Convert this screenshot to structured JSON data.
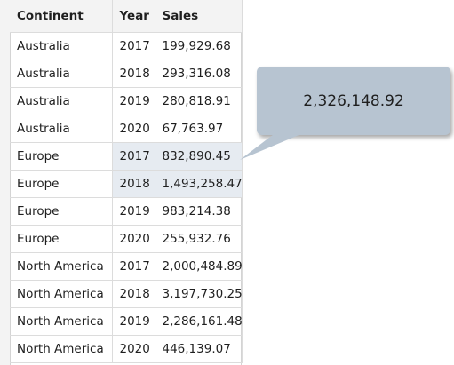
{
  "table": {
    "headers": [
      "Continent",
      "Year",
      "Sales"
    ],
    "rows": [
      [
        "Australia",
        "2017",
        "199,929.68"
      ],
      [
        "Australia",
        "2018",
        "293,316.08"
      ],
      [
        "Australia",
        "2019",
        "280,818.91"
      ],
      [
        "Australia",
        "2020",
        "67,763.97"
      ],
      [
        "Europe",
        "2017",
        "832,890.45"
      ],
      [
        "Europe",
        "2018",
        "1,493,258.47"
      ],
      [
        "Europe",
        "2019",
        "983,214.38"
      ],
      [
        "Europe",
        "2020",
        "255,932.76"
      ],
      [
        "North America",
        "2017",
        "2,000,484.89"
      ],
      [
        "North America",
        "2018",
        "3,197,730.25"
      ],
      [
        "North America",
        "2019",
        "2,286,161.48"
      ],
      [
        "North America",
        "2020",
        "446,139.07"
      ]
    ],
    "selected_rows": [
      4,
      5
    ]
  },
  "callout": {
    "value": "2,326,148.92",
    "color": "#b7c4d1"
  }
}
